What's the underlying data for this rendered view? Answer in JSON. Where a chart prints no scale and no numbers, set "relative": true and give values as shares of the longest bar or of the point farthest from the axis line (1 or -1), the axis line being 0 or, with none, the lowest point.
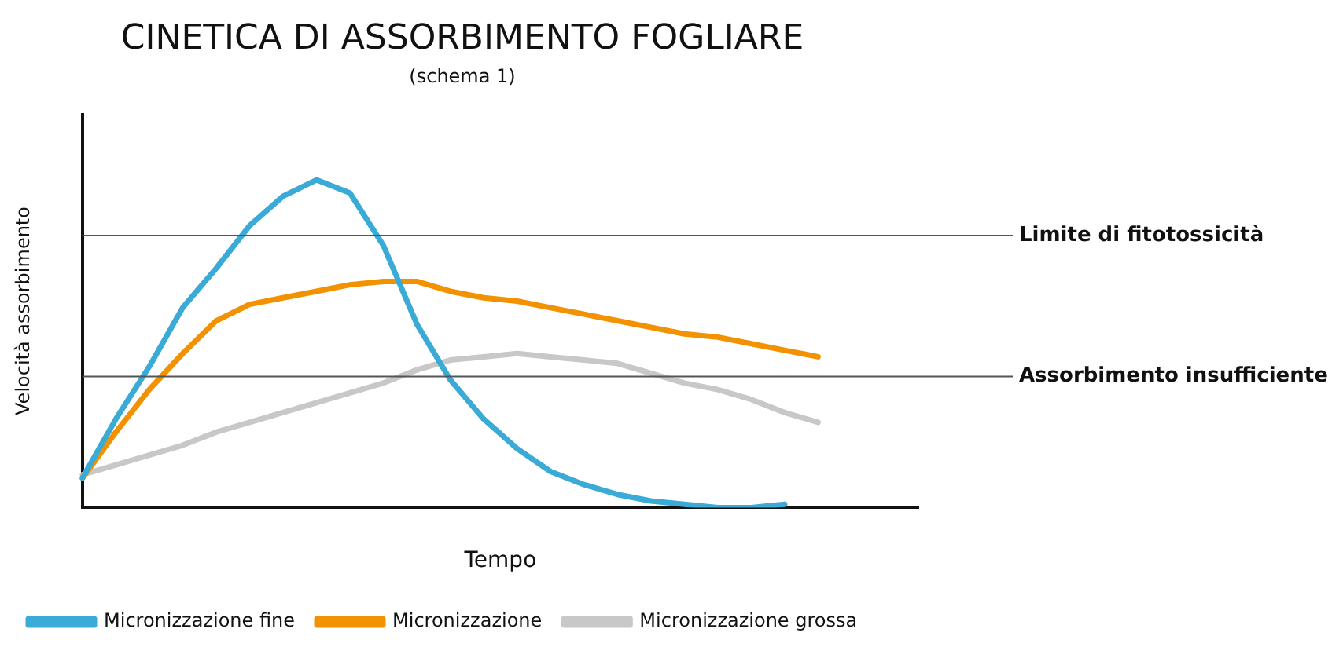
{
  "chart_data": {
    "type": "line",
    "title": "CINETICA DI ASSORBIMENTO FOGLIARE",
    "subtitle": "(schema 1)",
    "xlabel": "Tempo",
    "ylabel": "Velocità assorbimento",
    "relative": true,
    "legend": "bottom",
    "marker": "none",
    "line_style": "solid",
    "grid": false,
    "tick_labels": false,
    "categories": [
      null,
      null,
      null,
      null,
      null,
      null,
      null,
      null,
      null,
      null,
      null,
      null,
      null,
      null,
      null,
      null,
      null,
      null,
      null,
      null,
      null,
      null,
      null,
      null,
      null,
      null
    ],
    "series": [
      {
        "name": "Micronizzazione fine",
        "color": "#3aabd6",
        "values": [
          0.09,
          0.27,
          0.43,
          0.61,
          0.73,
          0.86,
          0.95,
          1,
          0.96,
          0.8,
          0.56,
          0.39,
          0.27,
          0.18,
          0.11,
          0.07,
          0.04,
          0.02,
          0.01,
          0,
          0,
          0.01,
          null,
          null,
          null,
          null
        ]
      },
      {
        "name": "Micronizzazione",
        "color": "#f39200",
        "values": [
          0.09,
          0.23,
          0.36,
          0.47,
          0.57,
          0.62,
          0.64,
          0.66,
          0.68,
          0.69,
          0.69,
          0.66,
          0.64,
          0.63,
          0.61,
          0.59,
          0.57,
          0.55,
          0.53,
          0.52,
          0.5,
          0.48,
          0.46,
          null,
          null,
          null
        ]
      },
      {
        "name": "Micronizzazione grossa",
        "color": "#c8c8c8",
        "values": [
          0.1,
          0.13,
          0.16,
          0.19,
          0.23,
          0.26,
          0.29,
          0.32,
          0.35,
          0.38,
          0.42,
          0.45,
          0.46,
          0.47,
          0.46,
          0.45,
          0.44,
          0.41,
          0.38,
          0.36,
          0.33,
          0.29,
          0.26,
          null,
          null,
          null
        ]
      }
    ],
    "ref_lines": [
      {
        "axis": "y",
        "value": 0.83,
        "label": "Limite di fitotossicità",
        "color": "#555555"
      },
      {
        "axis": "y",
        "value": 0.4,
        "label": "Assorbimento insufficiente",
        "color": "#555555"
      }
    ]
  }
}
